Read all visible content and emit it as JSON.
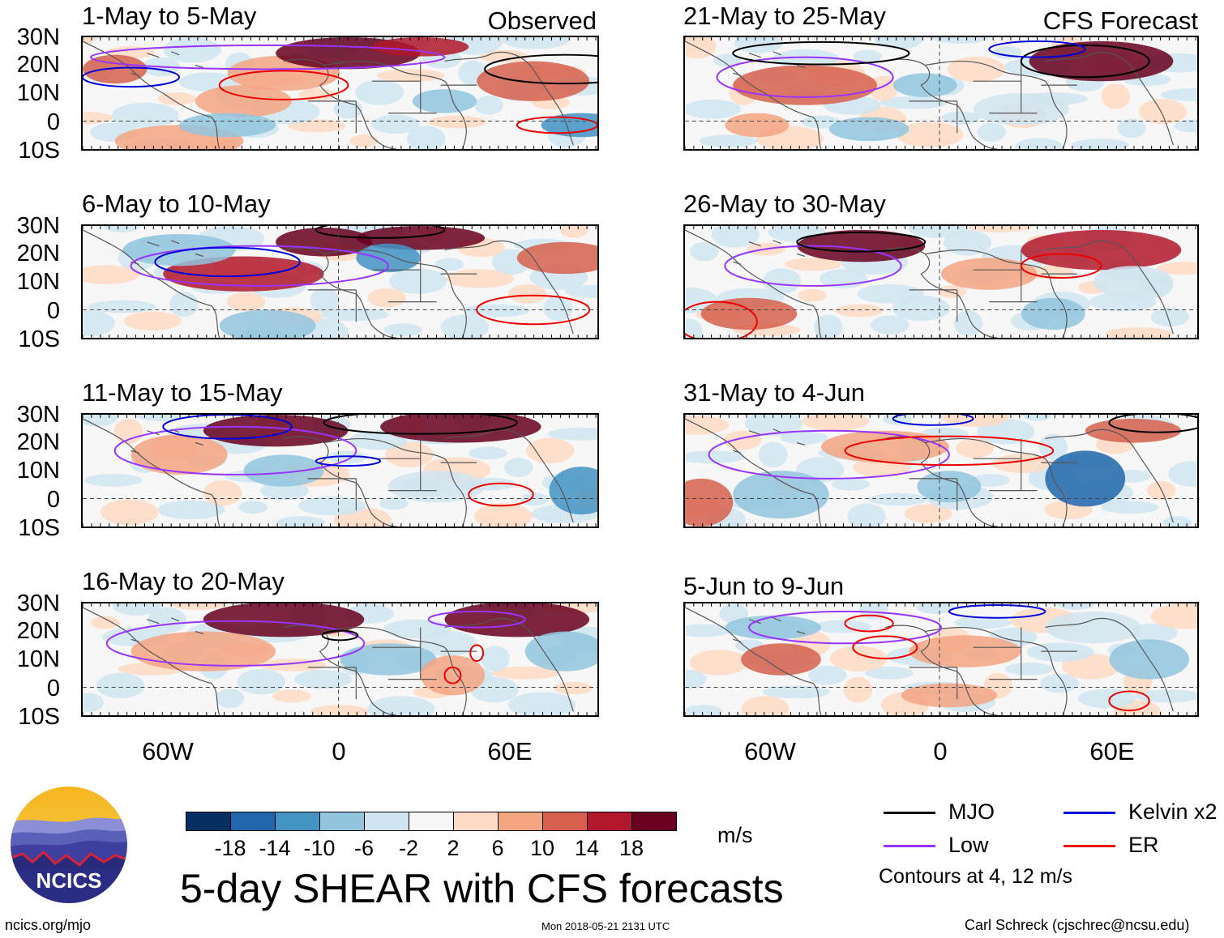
{
  "panels": [
    {
      "title": "1-May to 5-May",
      "tag": "Observed"
    },
    {
      "title": "21-May to 25-May",
      "tag": "CFS Forecast"
    },
    {
      "title": "6-May to 10-May",
      "tag": ""
    },
    {
      "title": "26-May to 30-May",
      "tag": ""
    },
    {
      "title": "11-May to 15-May",
      "tag": ""
    },
    {
      "title": "31-May to 4-Jun",
      "tag": ""
    },
    {
      "title": "16-May to 20-May",
      "tag": ""
    },
    {
      "title": "5-Jun to 9-Jun",
      "tag": ""
    }
  ],
  "lat_labels": [
    "30N",
    "20N",
    "10N",
    "0",
    "10S"
  ],
  "lon_labels": [
    "60W",
    "0",
    "60E"
  ],
  "colorbar": {
    "units": "m/s",
    "tick_labels": [
      "-18",
      "-14",
      "-10",
      "-6",
      "-2",
      "2",
      "6",
      "10",
      "14",
      "18"
    ],
    "colors": [
      "#053061",
      "#2166ac",
      "#4393c3",
      "#92c5de",
      "#d1e5f0",
      "#f7f7f7",
      "#fddbc7",
      "#f4a582",
      "#d6604d",
      "#b2182b",
      "#67001f"
    ]
  },
  "title": "5-day SHEAR with CFS forecasts",
  "legend": {
    "items": [
      {
        "label": "MJO",
        "color": "#000000"
      },
      {
        "label": "Kelvin x2",
        "color": "#0000dd"
      },
      {
        "label": "Low",
        "color": "#9933ff"
      },
      {
        "label": "ER",
        "color": "#ee0000"
      }
    ],
    "note": "Contours at 4, 12 m/s"
  },
  "logo_text": "NCICS",
  "footer": {
    "left": "ncics.org/mjo",
    "center": "Mon 2018-05-21 2131 UTC",
    "right": "Carl Schreck (cjschrec@ncsu.edu)"
  }
}
